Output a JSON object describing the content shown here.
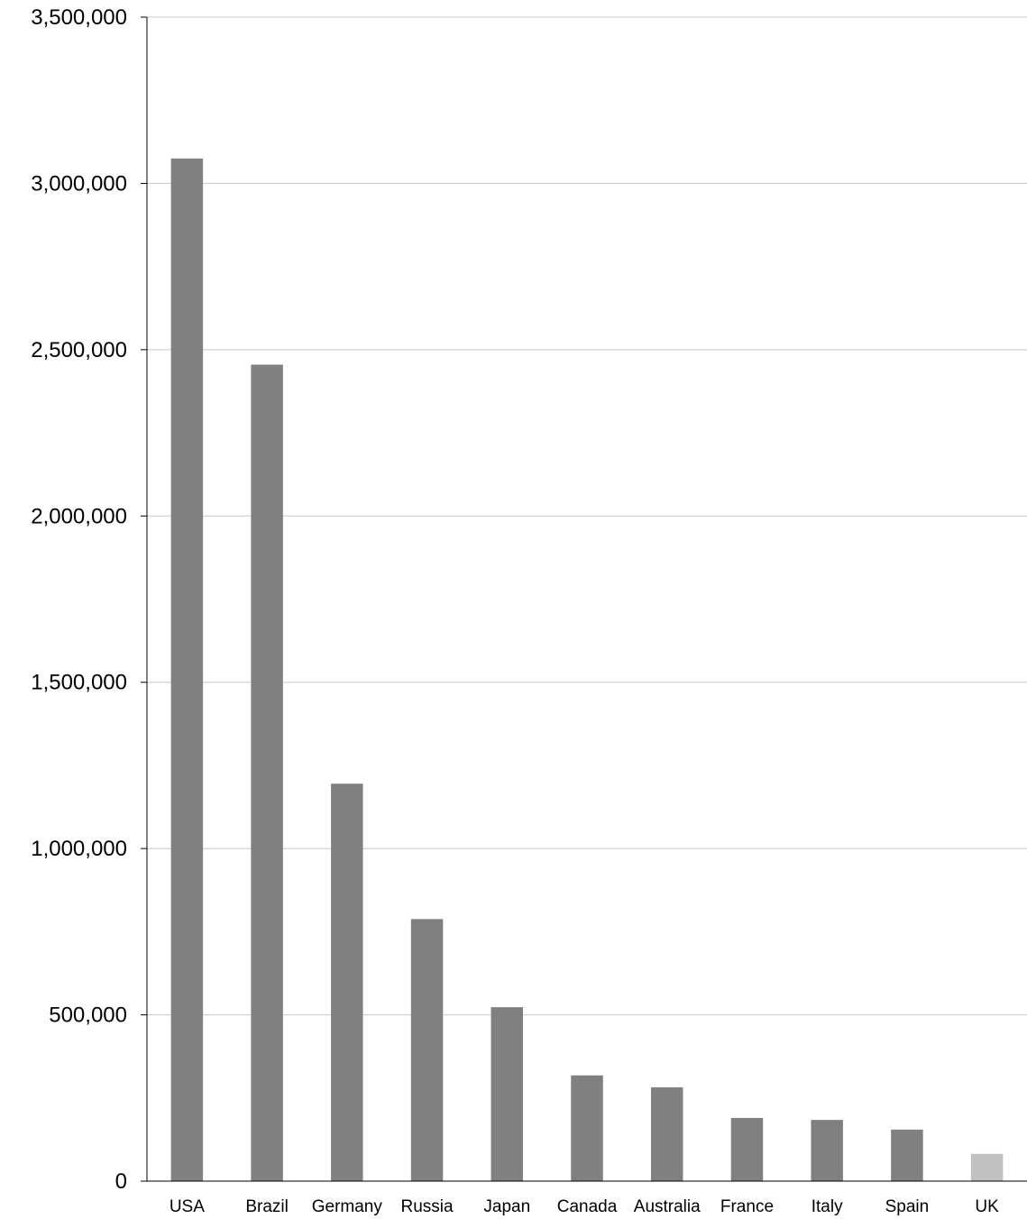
{
  "chart_data": {
    "type": "bar",
    "categories": [
      "USA",
      "Brazil",
      "Germany",
      "Russia",
      "Japan",
      "Canada",
      "Australia",
      "France",
      "Italy",
      "Spain",
      "UK"
    ],
    "values": [
      3075000,
      2455000,
      1195000,
      788000,
      523000,
      318000,
      282000,
      190000,
      184000,
      155000,
      82000
    ],
    "ylim": [
      0,
      3500000
    ],
    "yticks": [
      0,
      500000,
      1000000,
      1500000,
      2000000,
      2500000,
      3000000,
      3500000
    ],
    "ytick_labels": [
      "0",
      "500,000",
      "1,000,000",
      "1,500,000",
      "2,000,000",
      "2,500,000",
      "3,000,000",
      "3,500,000"
    ],
    "grid": true,
    "legend": "none",
    "colors": {
      "bar": "#808080",
      "highlight_bar": "#c0c0c0",
      "grid": "#c8c8c8",
      "axis": "#000000"
    },
    "highlight_category": "UK"
  }
}
